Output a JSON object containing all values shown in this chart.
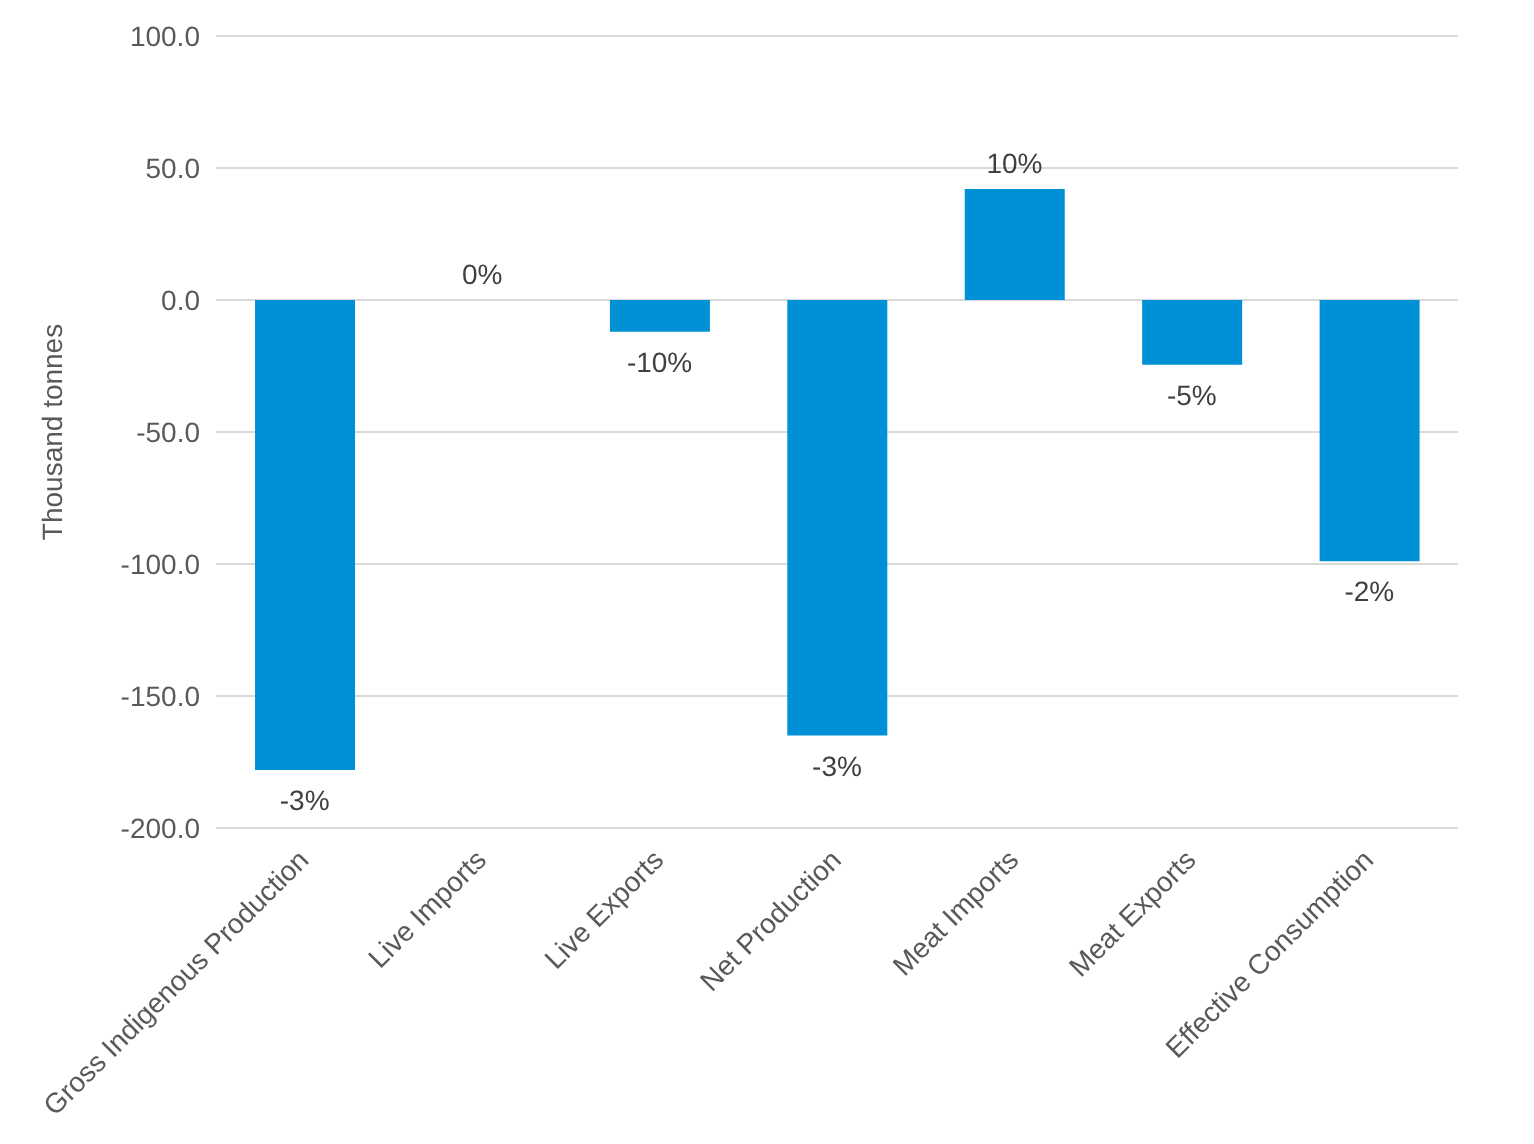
{
  "chart_data": {
    "type": "bar",
    "ylabel": "Thousand tonnes",
    "categories": [
      "Gross Indigenous Production",
      "Live Imports",
      "Live Exports",
      "Net Production",
      "Meat Imports",
      "Meat Exports",
      "Effective Consumption"
    ],
    "values": [
      -178,
      0,
      -12,
      -165,
      42,
      -24.5,
      -99
    ],
    "annotations": [
      {
        "text": "-3%",
        "x": "Gross Indigenous Production",
        "y": -178
      },
      {
        "text": "0%",
        "x": "Live Imports",
        "y": 0
      },
      {
        "text": "-10%",
        "x": "Live Exports",
        "y": -12
      },
      {
        "text": "-3%",
        "x": "Net Production",
        "y": -165
      },
      {
        "text": "10%",
        "x": "Meat Imports",
        "y": 42
      },
      {
        "text": "-5%",
        "x": "Meat Exports",
        "y": -24.5
      },
      {
        "text": "-2%",
        "x": "Effective Consumption",
        "y": -99
      }
    ],
    "color": "#0090d6",
    "ylim": [
      -200,
      100
    ],
    "yticks": [
      {
        "value": -200,
        "label": "-200.0"
      },
      {
        "value": -150,
        "label": "-150.0"
      },
      {
        "value": -100,
        "label": "-100.0"
      },
      {
        "value": -50,
        "label": "-50.0"
      },
      {
        "value": 0,
        "label": "0.0"
      },
      {
        "value": 50,
        "label": "50.0"
      },
      {
        "value": 100,
        "label": "100.0"
      }
    ],
    "grid": "y"
  }
}
